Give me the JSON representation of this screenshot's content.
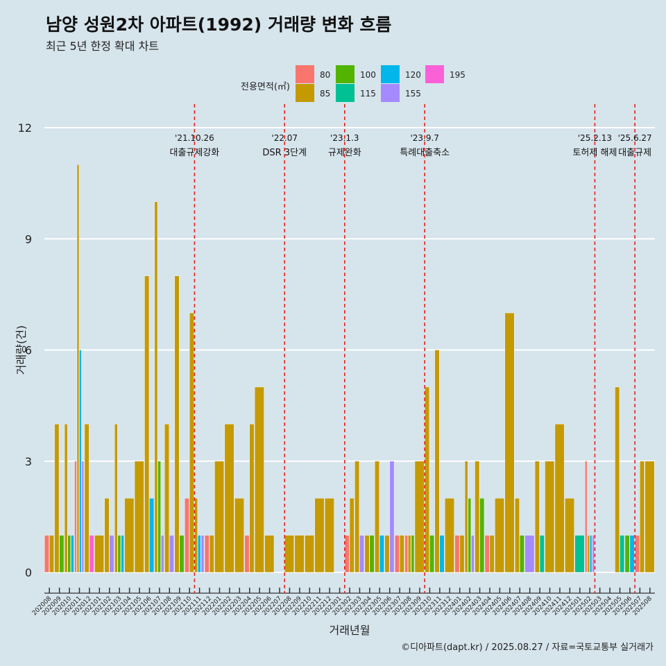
{
  "title": "남양 성원2차 아파트(1992) 거래량 변화 흐름",
  "subtitle": "최근 5년 한정 확대 차트",
  "caption": "©디아파트(dapt.kr) / 2025.08.27 / 자료=국토교통부 실거래가",
  "chart_data": {
    "type": "bar",
    "xlabel": "거래년월",
    "ylabel": "거래량(건)",
    "ylim": [
      0,
      12
    ],
    "yticks": [
      0,
      3,
      6,
      9,
      12
    ],
    "legend": {
      "title": "전용면적(㎡)",
      "placement": "top",
      "entries": [
        {
          "name": "80",
          "color": "#F8766D"
        },
        {
          "name": "85",
          "color": "#C49A00"
        },
        {
          "name": "100",
          "color": "#53B400"
        },
        {
          "name": "115",
          "color": "#00C094"
        },
        {
          "name": "120",
          "color": "#00B6EB"
        },
        {
          "name": "155",
          "color": "#A58AFF"
        },
        {
          "name": "195",
          "color": "#FB61D7"
        }
      ]
    },
    "categories": [
      "202008",
      "202009",
      "202010",
      "202011",
      "202012",
      "202101",
      "202102",
      "202103",
      "202104",
      "202105",
      "202106",
      "202107",
      "202108",
      "202109",
      "202110",
      "202111",
      "202112",
      "202201",
      "202202",
      "202203",
      "202204",
      "202205",
      "202206",
      "202207",
      "202208",
      "202209",
      "202210",
      "202211",
      "202212",
      "202301",
      "202302",
      "202303",
      "202304",
      "202305",
      "202306",
      "202307",
      "202308",
      "202309",
      "202310",
      "202311",
      "202312",
      "202401",
      "202402",
      "202403",
      "202404",
      "202405",
      "202406",
      "202407",
      "202408",
      "202409",
      "202410",
      "202411",
      "202412",
      "202501",
      "202502",
      "202503",
      "202504",
      "202505",
      "202506",
      "202507",
      "202508"
    ],
    "months": [
      [
        [
          "80",
          1
        ],
        [
          "85",
          1
        ]
      ],
      [
        [
          "85",
          4
        ],
        [
          "100",
          1
        ]
      ],
      [
        [
          "85",
          4
        ],
        [
          "100",
          1
        ],
        [
          "120",
          1
        ]
      ],
      [
        [
          "80",
          3
        ],
        [
          "85",
          11
        ],
        [
          "120",
          6
        ],
        [
          "155",
          3
        ]
      ],
      [
        [
          "85",
          4
        ],
        [
          "195",
          1
        ]
      ],
      [
        [
          "85",
          1
        ]
      ],
      [
        [
          "85",
          2
        ],
        [
          "155",
          1
        ]
      ],
      [
        [
          "85",
          4
        ],
        [
          "100",
          1
        ],
        [
          "120",
          1
        ]
      ],
      [
        [
          "85",
          2
        ]
      ],
      [
        [
          "85",
          3
        ]
      ],
      [
        [
          "85",
          8
        ],
        [
          "120",
          2
        ]
      ],
      [
        [
          "85",
          10
        ],
        [
          "100",
          3
        ],
        [
          "155",
          1
        ]
      ],
      [
        [
          "85",
          4
        ],
        [
          "155",
          1
        ]
      ],
      [
        [
          "85",
          8
        ],
        [
          "100",
          1
        ]
      ],
      [
        [
          "80",
          2
        ],
        [
          "85",
          7
        ]
      ],
      [
        [
          "85",
          2
        ],
        [
          "120",
          1
        ],
        [
          "155",
          1
        ]
      ],
      [
        [
          "80",
          1
        ],
        [
          "85",
          1
        ]
      ],
      [
        [
          "85",
          3
        ]
      ],
      [
        [
          "85",
          4
        ]
      ],
      [
        [
          "85",
          2
        ]
      ],
      [
        [
          "80",
          1
        ],
        [
          "85",
          4
        ]
      ],
      [
        [
          "85",
          5
        ]
      ],
      [
        [
          "85",
          1
        ]
      ],
      [],
      [
        [
          "85",
          1
        ]
      ],
      [
        [
          "85",
          1
        ]
      ],
      [
        [
          "85",
          1
        ]
      ],
      [
        [
          "85",
          2
        ]
      ],
      [
        [
          "85",
          2
        ]
      ],
      [],
      [
        [
          "80",
          1
        ],
        [
          "85",
          2
        ]
      ],
      [
        [
          "85",
          3
        ],
        [
          "155",
          1
        ]
      ],
      [
        [
          "85",
          1
        ],
        [
          "100",
          1
        ]
      ],
      [
        [
          "85",
          3
        ],
        [
          "120",
          1
        ]
      ],
      [
        [
          "85",
          1
        ],
        [
          "155",
          3
        ]
      ],
      [
        [
          "80",
          1
        ],
        [
          "85",
          1
        ]
      ],
      [
        [
          "80",
          1
        ],
        [
          "85",
          1
        ],
        [
          "100",
          1
        ]
      ],
      [
        [
          "85",
          3
        ]
      ],
      [
        [
          "85",
          5
        ],
        [
          "100",
          1
        ]
      ],
      [
        [
          "85",
          6
        ],
        [
          "120",
          1
        ]
      ],
      [
        [
          "85",
          2
        ]
      ],
      [
        [
          "80",
          1
        ],
        [
          "85",
          1
        ]
      ],
      [
        [
          "85",
          3
        ],
        [
          "100",
          2
        ],
        [
          "155",
          1
        ]
      ],
      [
        [
          "85",
          3
        ],
        [
          "100",
          2
        ]
      ],
      [
        [
          "80",
          1
        ],
        [
          "85",
          1
        ]
      ],
      [
        [
          "85",
          2
        ]
      ],
      [
        [
          "85",
          7
        ]
      ],
      [
        [
          "85",
          2
        ],
        [
          "100",
          1
        ]
      ],
      [
        [
          "155",
          1
        ]
      ],
      [
        [
          "85",
          3
        ],
        [
          "115",
          1
        ]
      ],
      [
        [
          "85",
          3
        ]
      ],
      [
        [
          "85",
          4
        ]
      ],
      [
        [
          "85",
          2
        ]
      ],
      [
        [
          "115",
          1
        ]
      ],
      [
        [
          "80",
          3
        ],
        [
          "85",
          1
        ],
        [
          "120",
          1
        ],
        [
          "155",
          1
        ]
      ],
      [],
      [],
      [
        [
          "85",
          5
        ],
        [
          "115",
          1
        ]
      ],
      [
        [
          "100",
          1
        ],
        [
          "120",
          1
        ]
      ],
      [
        [
          "80",
          1
        ],
        [
          "85",
          3
        ]
      ],
      [
        [
          "85",
          3
        ]
      ]
    ],
    "events": [
      {
        "after": "202110",
        "date": "'21.10.26",
        "label": "대출규제강화"
      },
      {
        "after": "202207",
        "date": "'22.07",
        "label": "DSR 3단계"
      },
      {
        "after": "202301",
        "date": "'23.1.3",
        "label": "규제완화"
      },
      {
        "after": "202309",
        "date": "'23.9.7",
        "label": "특례대출축소"
      },
      {
        "after": "202502",
        "date": "'25.2.13",
        "label": "토허제 해제"
      },
      {
        "after": "202506",
        "date": "'25.6.27",
        "label": "대출규제"
      }
    ]
  }
}
